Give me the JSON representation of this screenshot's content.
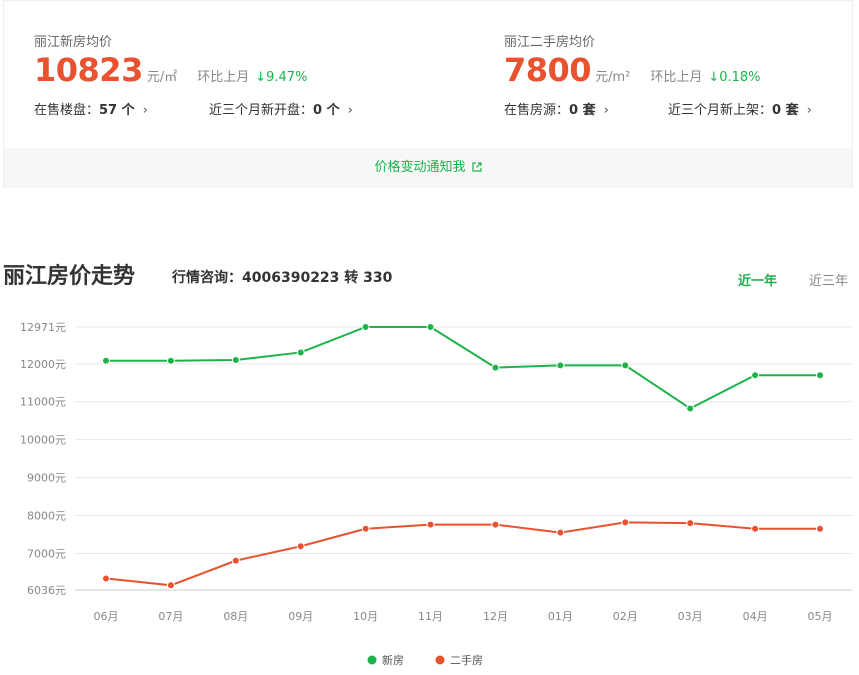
{
  "summary": {
    "new": {
      "label": "丽江新房均价",
      "price": "10823",
      "unit": "元/㎡",
      "mom_label": "环比上月",
      "mom_value": "↓9.47%",
      "stat1": "在售楼盘：",
      "stat1_value": "57 个",
      "stat2": "近三个月新开盘：",
      "stat2_value": "0 个"
    },
    "second": {
      "label": "丽江二手房均价",
      "price": "7800",
      "unit": "元/m²",
      "mom_label": "环比上月",
      "mom_value": "↓0.18%",
      "stat1": "在售房源：",
      "stat1_value": "0 套",
      "stat2": "近三个月新上架：",
      "stat2_value": "0 套"
    },
    "notify": "价格变动通知我",
    "chevron": "›"
  },
  "header": {
    "title": "丽江房价走势",
    "hotline": "行情咨询：4006390223 转 330",
    "tab_year": "近一年",
    "tab_three_years": "近三年"
  },
  "colors": {
    "green": "#1cb34a",
    "orange": "#e9522f"
  },
  "chart_data": {
    "type": "line",
    "categories": [
      "06月",
      "07月",
      "08月",
      "09月",
      "10月",
      "11月",
      "12月",
      "01月",
      "02月",
      "03月",
      "04月",
      "05月"
    ],
    "series": [
      {
        "name": "新房",
        "color": "#1cb34a",
        "values": [
          12080,
          12080,
          12100,
          12300,
          12971,
          12971,
          11900,
          11960,
          11960,
          10823,
          11700,
          11700
        ]
      },
      {
        "name": "二手房",
        "color": "#e9522f",
        "values": [
          6340,
          6160,
          6810,
          7190,
          7650,
          7760,
          7760,
          7550,
          7820,
          7800,
          7650,
          7650
        ]
      }
    ],
    "y_ticks": [
      {
        "value": 12971,
        "label": "12971元"
      },
      {
        "value": 12000,
        "label": "12000元"
      },
      {
        "value": 11000,
        "label": "11000元"
      },
      {
        "value": 10000,
        "label": "10000元"
      },
      {
        "value": 9000,
        "label": "9000元"
      },
      {
        "value": 8000,
        "label": "8000元"
      },
      {
        "value": 7000,
        "label": "7000元"
      },
      {
        "value": 6036,
        "label": "6036元"
      }
    ],
    "ylim": [
      6036,
      12971
    ],
    "grid": true,
    "legend": "bottom-center"
  }
}
